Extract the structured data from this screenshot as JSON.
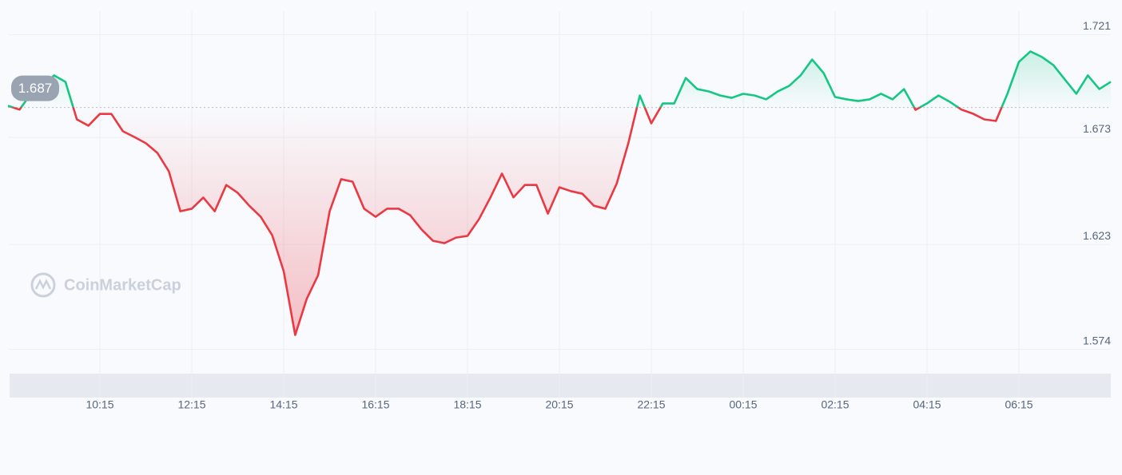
{
  "chart_data": {
    "type": "line",
    "watermark": "CoinMarketCap",
    "baseline": 1.687,
    "baseline_label": "1.687",
    "up_color": "#16c784",
    "down_color": "#ea3943",
    "grid": true,
    "x": [
      "08:15",
      "08:30",
      "08:45",
      "09:00",
      "09:15",
      "09:30",
      "09:45",
      "10:00",
      "10:15",
      "10:30",
      "10:45",
      "11:00",
      "11:15",
      "11:30",
      "11:45",
      "12:00",
      "12:15",
      "12:30",
      "12:45",
      "13:00",
      "13:15",
      "13:30",
      "13:45",
      "14:00",
      "14:15",
      "14:30",
      "14:45",
      "15:00",
      "15:15",
      "15:30",
      "15:45",
      "16:00",
      "16:15",
      "16:30",
      "16:45",
      "17:00",
      "17:15",
      "17:30",
      "17:45",
      "18:00",
      "18:15",
      "18:30",
      "18:45",
      "19:00",
      "19:15",
      "19:30",
      "19:45",
      "20:00",
      "20:15",
      "20:30",
      "20:45",
      "21:00",
      "21:15",
      "21:30",
      "21:45",
      "22:00",
      "22:15",
      "22:30",
      "22:45",
      "23:00",
      "23:15",
      "23:30",
      "23:45",
      "00:00",
      "00:15",
      "00:30",
      "00:45",
      "01:00",
      "01:15",
      "01:30",
      "01:45",
      "02:00",
      "02:15",
      "02:30",
      "02:45",
      "03:00",
      "03:15",
      "03:30",
      "03:45",
      "04:00",
      "04:15",
      "04:30",
      "04:45",
      "05:00",
      "05:15",
      "05:30",
      "05:45",
      "06:00",
      "06:15",
      "06:30",
      "06:45",
      "07:00",
      "07:15",
      "07:30",
      "07:45",
      "08:00",
      "08:15"
    ],
    "values": [
      1.6878,
      1.686,
      1.6934,
      1.6956,
      1.702,
      1.699,
      1.6814,
      1.6785,
      1.684,
      1.684,
      1.6759,
      1.6732,
      1.6703,
      1.6658,
      1.6572,
      1.6385,
      1.6397,
      1.6449,
      1.6385,
      1.6508,
      1.6471,
      1.6411,
      1.6359,
      1.6273,
      1.6105,
      1.5807,
      1.5975,
      1.6087,
      1.6385,
      1.6535,
      1.6523,
      1.6397,
      1.6359,
      1.6397,
      1.6397,
      1.6367,
      1.63,
      1.6247,
      1.6236,
      1.6262,
      1.627,
      1.6348,
      1.645,
      1.6561,
      1.645,
      1.6508,
      1.6508,
      1.6374,
      1.6497,
      1.6479,
      1.6467,
      1.6411,
      1.6397,
      1.6516,
      1.6703,
      1.6926,
      1.6796,
      1.6889,
      1.6889,
      1.7008,
      1.6956,
      1.6945,
      1.6926,
      1.6915,
      1.6934,
      1.6926,
      1.6908,
      1.6945,
      1.6971,
      1.702,
      1.7094,
      1.7031,
      1.6919,
      1.6908,
      1.69,
      1.6908,
      1.6934,
      1.6908,
      1.6956,
      1.6859,
      1.6889,
      1.6926,
      1.6896,
      1.686,
      1.6841,
      1.6814,
      1.6807,
      1.6934,
      1.7083,
      1.7132,
      1.7106,
      1.7068,
      1.7001,
      1.6934,
      1.702,
      1.6956,
      1.699
    ],
    "xticks": [
      "10:15",
      "12:15",
      "14:15",
      "16:15",
      "18:15",
      "20:15",
      "22:15",
      "00:15",
      "02:15",
      "04:15",
      "06:15"
    ],
    "ylim": [
      1.566,
      1.732
    ],
    "yticks": [
      1.574,
      1.623,
      1.673,
      1.721
    ]
  }
}
